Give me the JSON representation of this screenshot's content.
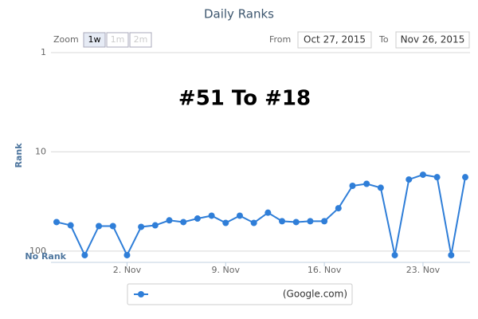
{
  "chart_data": {
    "type": "line",
    "title": "Daily Ranks",
    "annotation": "#51 To #18",
    "zoom": {
      "label": "Zoom",
      "buttons": [
        "1w",
        "1m",
        "2m"
      ]
    },
    "range": {
      "from_label": "From",
      "from": "Oct 27, 2015",
      "to_label": "To",
      "to": "Nov 26, 2015"
    },
    "y_label": "Rank",
    "log_scale": true,
    "reversed": true,
    "grid": true,
    "ylim": [
      1,
      130
    ],
    "yticks": [
      1,
      10,
      100,
      {
        "value": 110,
        "label": "No Rank"
      }
    ],
    "categories": [
      null,
      null,
      null,
      null,
      null,
      "2. Nov",
      null,
      null,
      null,
      null,
      null,
      null,
      "9. Nov",
      null,
      null,
      null,
      null,
      null,
      null,
      "16. Nov",
      null,
      null,
      null,
      null,
      null,
      null,
      "23. Nov",
      null,
      null,
      null
    ],
    "series": [
      {
        "name": "(Google.com)",
        "color": "#2f7ed8",
        "values": [
          51,
          55,
          110,
          56,
          56,
          110,
          57,
          55,
          49,
          51,
          47,
          44,
          52,
          44,
          52,
          41,
          50,
          51,
          50,
          50,
          37,
          22,
          21,
          23,
          110,
          19,
          17,
          18,
          110,
          18
        ]
      }
    ]
  }
}
